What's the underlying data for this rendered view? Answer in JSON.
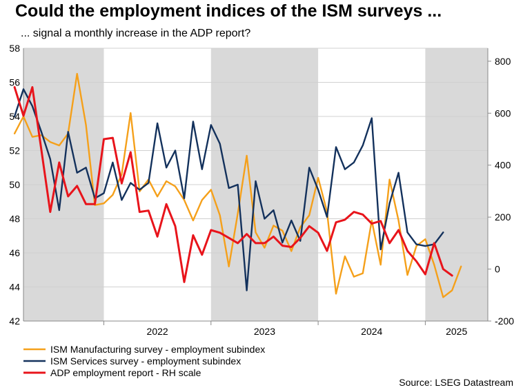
{
  "title": "Could the employment indices of the ISM surveys ...",
  "subtitle": "... signal a monthly increase in the ADP report?",
  "source": "Source: LSEG Datastream",
  "chart_data": {
    "type": "line",
    "x_start": "2021-04",
    "x_end": "2025-07",
    "x_tick_labels": [
      "2022",
      "2023",
      "2024",
      "2025"
    ],
    "shaded_periods": [
      [
        "2021-04",
        "2021-12"
      ],
      [
        "2023-01",
        "2023-12"
      ],
      [
        "2025-01",
        "2025-07"
      ]
    ],
    "y_left": {
      "range": [
        42,
        58
      ],
      "ticks": [
        42,
        44,
        46,
        48,
        50,
        52,
        54,
        56,
        58
      ]
    },
    "y_right": {
      "range": [
        -200,
        850
      ],
      "ticks": [
        -200,
        0,
        200,
        400,
        600,
        800
      ]
    },
    "grid": true,
    "legend_position": "bottom-left",
    "series": [
      {
        "name": "ISM Manufacturing survey - employment subindex",
        "axis": "left",
        "color": "#f5a01a",
        "points": [
          [
            "2021-03",
            53.0
          ],
          [
            "2021-04",
            54.0
          ],
          [
            "2021-05",
            52.8
          ],
          [
            "2021-06",
            52.9
          ],
          [
            "2021-07",
            52.5
          ],
          [
            "2021-08",
            52.3
          ],
          [
            "2021-09",
            53.0
          ],
          [
            "2021-10",
            56.5
          ],
          [
            "2021-11",
            53.5
          ],
          [
            "2021-12",
            48.8
          ],
          [
            "2022-01",
            48.9
          ],
          [
            "2022-02",
            49.4
          ],
          [
            "2022-03",
            50.6
          ],
          [
            "2022-04",
            54.2
          ],
          [
            "2022-05",
            49.6
          ],
          [
            "2022-06",
            50.3
          ],
          [
            "2022-07",
            49.3
          ],
          [
            "2022-08",
            50.2
          ],
          [
            "2022-09",
            49.9
          ],
          [
            "2022-10",
            49.1
          ],
          [
            "2022-11",
            47.9
          ],
          [
            "2022-12",
            49.1
          ],
          [
            "2023-01",
            49.7
          ],
          [
            "2023-02",
            48.2
          ],
          [
            "2023-03",
            45.2
          ],
          [
            "2023-04",
            48.3
          ],
          [
            "2023-05",
            51.7
          ],
          [
            "2023-06",
            47.2
          ],
          [
            "2023-07",
            46.3
          ],
          [
            "2023-08",
            47.6
          ],
          [
            "2023-09",
            47.3
          ],
          [
            "2023-10",
            46.1
          ],
          [
            "2023-11",
            47.5
          ],
          [
            "2023-12",
            48.2
          ],
          [
            "2024-01",
            50.4
          ],
          [
            "2024-02",
            48.4
          ],
          [
            "2024-03",
            43.6
          ],
          [
            "2024-04",
            45.8
          ],
          [
            "2024-05",
            44.6
          ],
          [
            "2024-06",
            44.8
          ],
          [
            "2024-07",
            47.9
          ],
          [
            "2024-08",
            45.3
          ],
          [
            "2024-09",
            50.3
          ],
          [
            "2024-10",
            47.9
          ],
          [
            "2024-11",
            44.7
          ],
          [
            "2024-12",
            46.4
          ],
          [
            "2025-01",
            46.8
          ],
          [
            "2025-02",
            45.3
          ],
          [
            "2025-03",
            43.4
          ],
          [
            "2025-04",
            43.8
          ],
          [
            "2025-05",
            45.2
          ]
        ]
      },
      {
        "name": "ISM Services survey - employment subindex",
        "axis": "left",
        "color": "#13315c",
        "points": [
          [
            "2021-03",
            54.0
          ],
          [
            "2021-04",
            55.6
          ],
          [
            "2021-05",
            54.6
          ],
          [
            "2021-06",
            53.1
          ],
          [
            "2021-07",
            51.5
          ],
          [
            "2021-08",
            48.5
          ],
          [
            "2021-09",
            53.1
          ],
          [
            "2021-10",
            50.7
          ],
          [
            "2021-11",
            51.0
          ],
          [
            "2021-12",
            49.2
          ],
          [
            "2022-01",
            49.5
          ],
          [
            "2022-02",
            51.3
          ],
          [
            "2022-03",
            49.1
          ],
          [
            "2022-04",
            50.1
          ],
          [
            "2022-05",
            49.7
          ],
          [
            "2022-06",
            50.1
          ],
          [
            "2022-07",
            53.6
          ],
          [
            "2022-08",
            51.0
          ],
          [
            "2022-09",
            52.0
          ],
          [
            "2022-10",
            49.2
          ],
          [
            "2022-11",
            53.7
          ],
          [
            "2022-12",
            50.9
          ],
          [
            "2023-01",
            53.5
          ],
          [
            "2023-02",
            52.4
          ],
          [
            "2023-03",
            49.8
          ],
          [
            "2023-04",
            50.0
          ],
          [
            "2023-05",
            43.8
          ],
          [
            "2023-06",
            50.2
          ],
          [
            "2023-07",
            48.0
          ],
          [
            "2023-08",
            48.5
          ],
          [
            "2023-09",
            46.6
          ],
          [
            "2023-10",
            47.9
          ],
          [
            "2023-11",
            46.7
          ],
          [
            "2023-12",
            51.0
          ],
          [
            "2024-01",
            49.7
          ],
          [
            "2024-02",
            48.1
          ],
          [
            "2024-03",
            52.2
          ],
          [
            "2024-04",
            50.9
          ],
          [
            "2024-05",
            51.3
          ],
          [
            "2024-06",
            52.3
          ],
          [
            "2024-07",
            53.9
          ],
          [
            "2024-08",
            46.2
          ],
          [
            "2024-09",
            48.9
          ],
          [
            "2024-10",
            50.7
          ],
          [
            "2024-11",
            47.2
          ],
          [
            "2024-12",
            46.5
          ],
          [
            "2025-01",
            46.4
          ],
          [
            "2025-02",
            46.5
          ],
          [
            "2025-03",
            47.2
          ]
        ]
      },
      {
        "name": "ADP employment report - RH scale",
        "axis": "right",
        "color": "#e8141b",
        "points": [
          [
            "2021-03",
            700
          ],
          [
            "2021-04",
            590
          ],
          [
            "2021-05",
            700
          ],
          [
            "2021-06",
            460
          ],
          [
            "2021-07",
            220
          ],
          [
            "2021-08",
            410
          ],
          [
            "2021-09",
            280
          ],
          [
            "2021-10",
            320
          ],
          [
            "2021-11",
            250
          ],
          [
            "2021-12",
            250
          ],
          [
            "2022-01",
            500
          ],
          [
            "2022-02",
            505
          ],
          [
            "2022-03",
            330
          ],
          [
            "2022-04",
            450
          ],
          [
            "2022-05",
            220
          ],
          [
            "2022-06",
            225
          ],
          [
            "2022-07",
            125
          ],
          [
            "2022-08",
            250
          ],
          [
            "2022-09",
            165
          ],
          [
            "2022-10",
            -50
          ],
          [
            "2022-11",
            130
          ],
          [
            "2022-12",
            55
          ],
          [
            "2023-01",
            150
          ],
          [
            "2023-02",
            140
          ],
          [
            "2023-03",
            120
          ],
          [
            "2023-04",
            100
          ],
          [
            "2023-05",
            135
          ],
          [
            "2023-06",
            100
          ],
          [
            "2023-07",
            100
          ],
          [
            "2023-08",
            125
          ],
          [
            "2023-09",
            90
          ],
          [
            "2023-10",
            85
          ],
          [
            "2023-11",
            120
          ],
          [
            "2023-12",
            165
          ],
          [
            "2024-01",
            140
          ],
          [
            "2024-02",
            70
          ],
          [
            "2024-03",
            180
          ],
          [
            "2024-04",
            190
          ],
          [
            "2024-05",
            220
          ],
          [
            "2024-06",
            210
          ],
          [
            "2024-07",
            175
          ],
          [
            "2024-08",
            185
          ],
          [
            "2024-09",
            100
          ],
          [
            "2024-10",
            150
          ],
          [
            "2024-11",
            70
          ],
          [
            "2024-12",
            30
          ],
          [
            "2025-01",
            -20
          ],
          [
            "2025-02",
            100
          ],
          [
            "2025-03",
            0
          ],
          [
            "2025-04",
            -25
          ]
        ]
      }
    ]
  }
}
